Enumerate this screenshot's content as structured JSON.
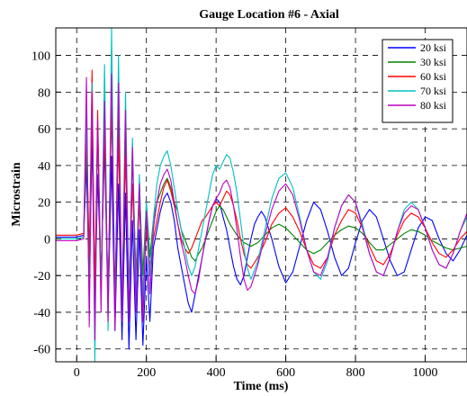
{
  "chart_data": {
    "type": "line",
    "title": "Gauge Location #6 - Axial",
    "xlabel": "Time (ms)",
    "ylabel": "Microstrain",
    "xlim": [
      -60,
      1120
    ],
    "ylim": [
      -67,
      115
    ],
    "xticks": [
      0,
      200,
      400,
      600,
      800,
      1000
    ],
    "yticks": [
      -60,
      -40,
      -20,
      0,
      20,
      40,
      60,
      80,
      100
    ],
    "grid": true,
    "legend_position": "top-right",
    "series": [
      {
        "name": "20 ksi",
        "color": "#0000ff",
        "x": [
          -60,
          0,
          20,
          28,
          36,
          44,
          52,
          60,
          70,
          80,
          90,
          100,
          110,
          120,
          130,
          140,
          150,
          160,
          170,
          180,
          190,
          200,
          210,
          220,
          230,
          240,
          250,
          260,
          270,
          280,
          290,
          300,
          310,
          320,
          330,
          340,
          350,
          360,
          370,
          380,
          390,
          400,
          410,
          420,
          430,
          440,
          450,
          460,
          470,
          480,
          490,
          500,
          510,
          520,
          530,
          540,
          560,
          580,
          600,
          620,
          640,
          660,
          680,
          700,
          720,
          740,
          760,
          780,
          800,
          820,
          840,
          860,
          880,
          900,
          920,
          940,
          960,
          980,
          1000,
          1020,
          1040,
          1060,
          1080,
          1100,
          1120
        ],
        "y": [
          1,
          1,
          2,
          40,
          -30,
          55,
          -45,
          35,
          -20,
          50,
          -40,
          45,
          -50,
          30,
          -55,
          25,
          -60,
          10,
          -55,
          5,
          -58,
          -10,
          -45,
          -5,
          5,
          15,
          22,
          25,
          20,
          10,
          -5,
          -15,
          -25,
          -35,
          -40,
          -30,
          -20,
          -10,
          0,
          10,
          18,
          22,
          20,
          12,
          5,
          -5,
          -15,
          -22,
          -25,
          -20,
          -10,
          0,
          8,
          12,
          15,
          12,
          0,
          -15,
          -24,
          -18,
          -4,
          10,
          20,
          16,
          4,
          -10,
          -20,
          -16,
          -2,
          10,
          16,
          12,
          0,
          -12,
          -20,
          -18,
          -6,
          6,
          12,
          10,
          0,
          -8,
          -12,
          -6,
          2
        ]
      },
      {
        "name": "30 ksi",
        "color": "#008000",
        "x": [
          -60,
          0,
          20,
          28,
          36,
          44,
          52,
          60,
          70,
          80,
          90,
          100,
          110,
          120,
          130,
          140,
          150,
          160,
          170,
          180,
          190,
          200,
          210,
          220,
          230,
          240,
          250,
          260,
          270,
          280,
          290,
          300,
          310,
          320,
          330,
          340,
          350,
          360,
          370,
          380,
          390,
          400,
          410,
          420,
          430,
          440,
          460,
          480,
          500,
          520,
          540,
          560,
          580,
          600,
          620,
          640,
          660,
          680,
          700,
          720,
          740,
          760,
          780,
          800,
          820,
          840,
          860,
          880,
          900,
          920,
          940,
          960,
          980,
          1000,
          1020,
          1040,
          1060,
          1080,
          1100,
          1120
        ],
        "y": [
          0,
          0,
          1,
          50,
          -20,
          70,
          -35,
          60,
          -25,
          55,
          -30,
          80,
          -40,
          70,
          -35,
          60,
          -30,
          45,
          -20,
          30,
          -20,
          20,
          -10,
          10,
          20,
          25,
          30,
          33,
          28,
          20,
          15,
          5,
          0,
          -5,
          -10,
          -12,
          -8,
          -5,
          0,
          5,
          10,
          15,
          18,
          16,
          12,
          8,
          2,
          -2,
          -4,
          -2,
          2,
          6,
          8,
          6,
          2,
          -2,
          -6,
          -8,
          -6,
          -2,
          2,
          5,
          7,
          6,
          3,
          -2,
          -6,
          -6,
          -3,
          0,
          3,
          5,
          4,
          2,
          -1,
          -3,
          -5,
          -6,
          -5,
          -4
        ]
      },
      {
        "name": "60 ksi",
        "color": "#ff0000",
        "x": [
          -60,
          0,
          20,
          28,
          36,
          44,
          52,
          60,
          70,
          80,
          90,
          100,
          110,
          120,
          130,
          140,
          150,
          160,
          170,
          180,
          190,
          200,
          210,
          220,
          230,
          240,
          250,
          260,
          270,
          280,
          290,
          300,
          310,
          320,
          330,
          340,
          350,
          360,
          370,
          380,
          390,
          400,
          410,
          420,
          430,
          440,
          450,
          460,
          470,
          480,
          490,
          500,
          520,
          540,
          560,
          580,
          600,
          620,
          640,
          660,
          680,
          700,
          720,
          740,
          760,
          780,
          800,
          820,
          840,
          860,
          880,
          900,
          920,
          940,
          960,
          980,
          1000,
          1020,
          1040,
          1060,
          1080,
          1100,
          1120
        ],
        "y": [
          2,
          2,
          3,
          60,
          -10,
          92,
          -30,
          70,
          -25,
          60,
          -35,
          75,
          -30,
          55,
          -35,
          45,
          -30,
          30,
          -25,
          20,
          -30,
          5,
          -15,
          0,
          10,
          20,
          28,
          32,
          26,
          18,
          8,
          0,
          -5,
          -8,
          -5,
          0,
          5,
          10,
          12,
          15,
          18,
          20,
          18,
          22,
          26,
          24,
          18,
          10,
          0,
          -8,
          -14,
          -16,
          -10,
          -2,
          8,
          14,
          17,
          12,
          4,
          -6,
          -14,
          -16,
          -10,
          2,
          10,
          16,
          14,
          6,
          -4,
          -12,
          -14,
          -8,
          2,
          10,
          14,
          12,
          6,
          -2,
          -8,
          -10,
          -6,
          0,
          4
        ]
      },
      {
        "name": "70 ksi",
        "color": "#00c0c0",
        "x": [
          -60,
          0,
          20,
          28,
          36,
          44,
          52,
          60,
          70,
          80,
          90,
          100,
          110,
          120,
          130,
          140,
          150,
          160,
          170,
          180,
          190,
          200,
          210,
          220,
          230,
          240,
          250,
          260,
          270,
          280,
          290,
          300,
          310,
          320,
          330,
          340,
          350,
          360,
          370,
          380,
          390,
          400,
          410,
          420,
          430,
          440,
          450,
          460,
          470,
          480,
          490,
          500,
          520,
          540,
          560,
          580,
          600,
          620,
          640,
          660,
          680,
          700,
          720,
          740,
          760,
          780,
          800,
          820,
          840,
          860,
          880,
          900,
          920,
          940,
          960,
          980,
          1000,
          1020,
          1040,
          1060,
          1080,
          1100,
          1120
        ],
        "y": [
          0,
          0,
          1,
          70,
          -40,
          85,
          -67,
          60,
          -30,
          95,
          -50,
          115,
          -45,
          100,
          -40,
          80,
          -35,
          55,
          -30,
          35,
          -35,
          20,
          -20,
          10,
          30,
          40,
          45,
          48,
          40,
          28,
          15,
          5,
          -5,
          -15,
          -20,
          -15,
          -5,
          5,
          15,
          25,
          35,
          40,
          38,
          42,
          46,
          44,
          36,
          25,
          10,
          -5,
          -16,
          -22,
          -12,
          5,
          22,
          33,
          36,
          28,
          12,
          -6,
          -18,
          -22,
          -12,
          6,
          18,
          24,
          20,
          8,
          -8,
          -18,
          -20,
          -10,
          4,
          16,
          20,
          16,
          6,
          -6,
          -14,
          -16,
          -8,
          4,
          12
        ]
      },
      {
        "name": "80 ksi",
        "color": "#c000c0",
        "x": [
          -60,
          0,
          20,
          28,
          36,
          44,
          52,
          60,
          70,
          80,
          90,
          100,
          110,
          120,
          130,
          140,
          150,
          160,
          170,
          180,
          190,
          200,
          210,
          220,
          230,
          240,
          250,
          260,
          270,
          280,
          290,
          300,
          310,
          320,
          330,
          340,
          350,
          360,
          370,
          380,
          390,
          400,
          410,
          420,
          430,
          440,
          450,
          460,
          470,
          480,
          490,
          500,
          520,
          540,
          560,
          580,
          600,
          620,
          640,
          660,
          680,
          700,
          720,
          740,
          760,
          780,
          800,
          820,
          840,
          860,
          880,
          900,
          920,
          940,
          960,
          980,
          1000,
          1020,
          1040,
          1060,
          1080,
          1100,
          1120
        ],
        "y": [
          -1,
          -1,
          0,
          88,
          -48,
          80,
          -55,
          65,
          -40,
          75,
          -45,
          90,
          -50,
          85,
          -45,
          70,
          -45,
          50,
          -40,
          30,
          -45,
          15,
          -30,
          5,
          20,
          30,
          35,
          38,
          32,
          20,
          8,
          -2,
          -10,
          -20,
          -28,
          -30,
          -22,
          -10,
          0,
          10,
          18,
          22,
          25,
          30,
          32,
          28,
          18,
          5,
          -10,
          -22,
          -28,
          -26,
          -14,
          2,
          16,
          26,
          30,
          24,
          10,
          -6,
          -18,
          -20,
          -10,
          6,
          18,
          24,
          20,
          6,
          -8,
          -18,
          -20,
          -10,
          4,
          14,
          18,
          16,
          6,
          -6,
          -14,
          -16,
          -8,
          4,
          14
        ]
      }
    ]
  }
}
